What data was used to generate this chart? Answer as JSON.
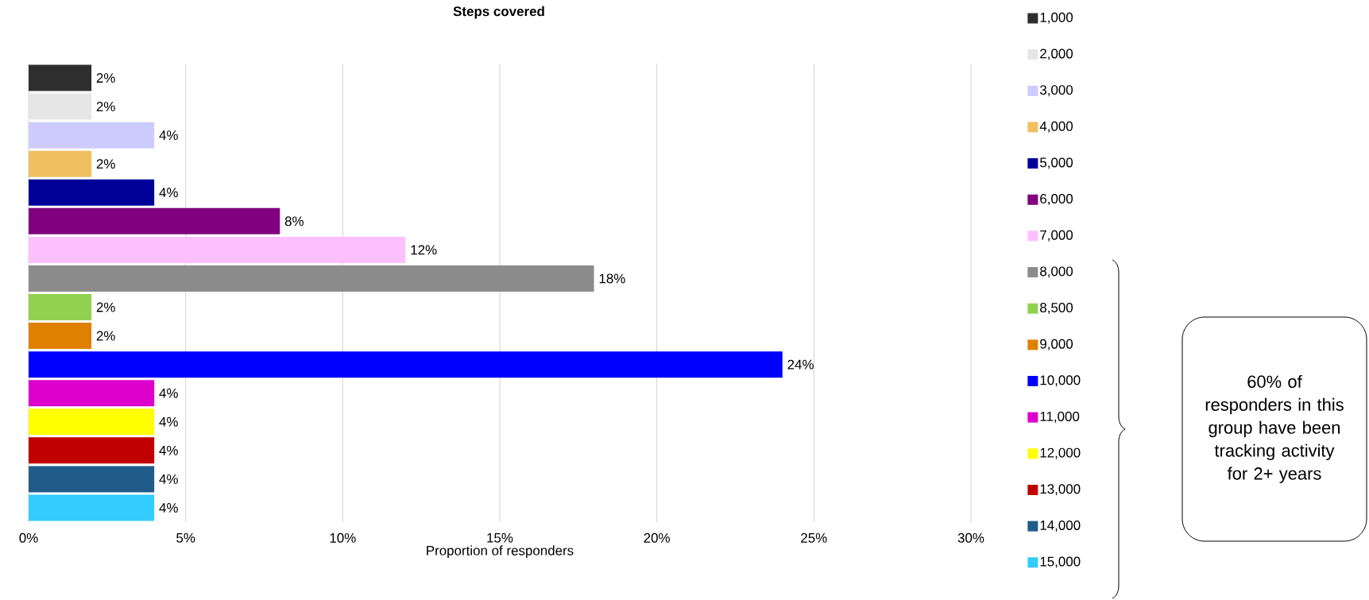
{
  "chart_data": {
    "type": "bar",
    "orientation": "horizontal",
    "title": "Steps covered",
    "xlabel": "Proportion of responders",
    "categories": [
      null,
      null,
      null,
      null,
      null,
      null,
      null,
      null,
      null,
      null,
      null,
      null,
      null,
      null,
      null,
      null
    ],
    "series": [
      {
        "name": "1,000",
        "color": "#2e2e2e",
        "values": [
          2,
          null,
          null,
          null,
          null,
          null,
          null,
          null,
          null,
          null,
          null,
          null,
          null,
          null,
          null,
          null
        ],
        "value_labels": [
          "2%",
          null,
          null,
          null,
          null,
          null,
          null,
          null,
          null,
          null,
          null,
          null,
          null,
          null,
          null,
          null
        ]
      },
      {
        "name": "2,000",
        "color": "#e6e6e6",
        "values": [
          null,
          2,
          null,
          null,
          null,
          null,
          null,
          null,
          null,
          null,
          null,
          null,
          null,
          null,
          null,
          null
        ],
        "value_labels": [
          null,
          "2%",
          null,
          null,
          null,
          null,
          null,
          null,
          null,
          null,
          null,
          null,
          null,
          null,
          null,
          null
        ]
      },
      {
        "name": "3,000",
        "color": "#ccccff",
        "values": [
          null,
          null,
          4,
          null,
          null,
          null,
          null,
          null,
          null,
          null,
          null,
          null,
          null,
          null,
          null,
          null
        ],
        "value_labels": [
          null,
          null,
          "4%",
          null,
          null,
          null,
          null,
          null,
          null,
          null,
          null,
          null,
          null,
          null,
          null,
          null
        ]
      },
      {
        "name": "4,000",
        "color": "#f0c060",
        "values": [
          null,
          null,
          null,
          2,
          null,
          null,
          null,
          null,
          null,
          null,
          null,
          null,
          null,
          null,
          null,
          null
        ],
        "value_labels": [
          null,
          null,
          null,
          "2%",
          null,
          null,
          null,
          null,
          null,
          null,
          null,
          null,
          null,
          null,
          null,
          null
        ]
      },
      {
        "name": "5,000",
        "color": "#000099",
        "values": [
          null,
          null,
          null,
          null,
          4,
          null,
          null,
          null,
          null,
          null,
          null,
          null,
          null,
          null,
          null,
          null
        ],
        "value_labels": [
          null,
          null,
          null,
          null,
          "4%",
          null,
          null,
          null,
          null,
          null,
          null,
          null,
          null,
          null,
          null,
          null
        ]
      },
      {
        "name": "6,000",
        "color": "#800080",
        "values": [
          null,
          null,
          null,
          null,
          null,
          8,
          null,
          null,
          null,
          null,
          null,
          null,
          null,
          null,
          null,
          null
        ],
        "value_labels": [
          null,
          null,
          null,
          null,
          null,
          "8%",
          null,
          null,
          null,
          null,
          null,
          null,
          null,
          null,
          null,
          null
        ]
      },
      {
        "name": "7,000",
        "color": "#ffc0ff",
        "values": [
          null,
          null,
          null,
          null,
          null,
          null,
          12,
          null,
          null,
          null,
          null,
          null,
          null,
          null,
          null,
          null
        ],
        "value_labels": [
          null,
          null,
          null,
          null,
          null,
          null,
          "12%",
          null,
          null,
          null,
          null,
          null,
          null,
          null,
          null,
          null
        ]
      },
      {
        "name": "8,000",
        "color": "#8c8c8c",
        "values": [
          null,
          null,
          null,
          null,
          null,
          null,
          null,
          18,
          null,
          null,
          null,
          null,
          null,
          null,
          null,
          null
        ],
        "value_labels": [
          null,
          null,
          null,
          null,
          null,
          null,
          null,
          "18%",
          null,
          null,
          null,
          null,
          null,
          null,
          null,
          null
        ]
      },
      {
        "name": "8,500",
        "color": "#92d050",
        "values": [
          null,
          null,
          null,
          null,
          null,
          null,
          null,
          null,
          2,
          null,
          null,
          null,
          null,
          null,
          null,
          null
        ],
        "value_labels": [
          null,
          null,
          null,
          null,
          null,
          null,
          null,
          null,
          "2%",
          null,
          null,
          null,
          null,
          null,
          null,
          null
        ]
      },
      {
        "name": "9,000",
        "color": "#e08000",
        "values": [
          null,
          null,
          null,
          null,
          null,
          null,
          null,
          null,
          null,
          2,
          null,
          null,
          null,
          null,
          null,
          null
        ],
        "value_labels": [
          null,
          null,
          null,
          null,
          null,
          null,
          null,
          null,
          null,
          "2%",
          null,
          null,
          null,
          null,
          null,
          null
        ]
      },
      {
        "name": "10,000",
        "color": "#0000ff",
        "values": [
          null,
          null,
          null,
          null,
          null,
          null,
          null,
          null,
          null,
          null,
          24,
          null,
          null,
          null,
          null,
          null
        ],
        "value_labels": [
          null,
          null,
          null,
          null,
          null,
          null,
          null,
          null,
          null,
          null,
          "24%",
          null,
          null,
          null,
          null,
          null
        ]
      },
      {
        "name": "11,000",
        "color": "#dd00cc",
        "values": [
          null,
          null,
          null,
          null,
          null,
          null,
          null,
          null,
          null,
          null,
          null,
          4,
          null,
          null,
          null,
          null
        ],
        "value_labels": [
          null,
          null,
          null,
          null,
          null,
          null,
          null,
          null,
          null,
          null,
          null,
          "4%",
          null,
          null,
          null,
          null
        ]
      },
      {
        "name": "12,000",
        "color": "#ffff00",
        "values": [
          null,
          null,
          null,
          null,
          null,
          null,
          null,
          null,
          null,
          null,
          null,
          null,
          4,
          null,
          null,
          null
        ],
        "value_labels": [
          null,
          null,
          null,
          null,
          null,
          null,
          null,
          null,
          null,
          null,
          null,
          null,
          "4%",
          null,
          null,
          null
        ]
      },
      {
        "name": "13,000",
        "color": "#c00000",
        "values": [
          null,
          null,
          null,
          null,
          null,
          null,
          null,
          null,
          null,
          null,
          null,
          null,
          null,
          4,
          null,
          null
        ],
        "value_labels": [
          null,
          null,
          null,
          null,
          null,
          null,
          null,
          null,
          null,
          null,
          null,
          null,
          null,
          "4%",
          null,
          null
        ]
      },
      {
        "name": "14,000",
        "color": "#1f5c8a",
        "values": [
          null,
          null,
          null,
          null,
          null,
          null,
          null,
          null,
          null,
          null,
          null,
          null,
          null,
          null,
          4,
          null
        ],
        "value_labels": [
          null,
          null,
          null,
          null,
          null,
          null,
          null,
          null,
          null,
          null,
          null,
          null,
          null,
          null,
          "4%",
          null
        ]
      },
      {
        "name": "15,000",
        "color": "#33ccff",
        "values": [
          null,
          null,
          null,
          null,
          null,
          null,
          null,
          null,
          null,
          null,
          null,
          null,
          null,
          null,
          null,
          4
        ],
        "value_labels": [
          null,
          null,
          null,
          null,
          null,
          null,
          null,
          null,
          null,
          null,
          null,
          null,
          null,
          null,
          null,
          "4%"
        ]
      }
    ],
    "xlim": [
      0,
      30
    ],
    "xticks": [
      {
        "value": 0,
        "label": "0%"
      },
      {
        "value": 5,
        "label": "5%"
      },
      {
        "value": 10,
        "label": "10%"
      },
      {
        "value": 15,
        "label": "15%"
      },
      {
        "value": 20,
        "label": "20%"
      },
      {
        "value": 25,
        "label": "25%"
      },
      {
        "value": 30,
        "label": "30%"
      }
    ],
    "grid": "x",
    "legend": "right",
    "tick_labels": "x",
    "annotations": [
      "60% of responders in this group have been tracking activity for 2+ years"
    ]
  }
}
